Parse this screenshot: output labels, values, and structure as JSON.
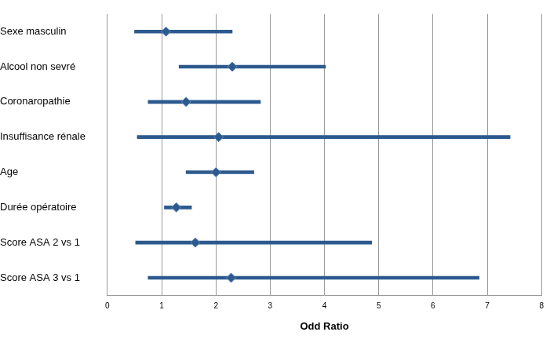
{
  "chart_data": {
    "type": "forest",
    "categories": [
      "Sexe masculin",
      "Alcool non sevré",
      "Coronaropathie",
      "Insuffisance rénale",
      "Age",
      "Durée opératoire",
      "Score ASA 2 vs 1",
      "Score ASA 3 vs 1"
    ],
    "values": [
      1.08,
      2.3,
      1.45,
      2.05,
      2.0,
      1.27,
      1.62,
      2.28
    ],
    "ci_low": [
      0.5,
      1.32,
      0.75,
      0.55,
      1.45,
      1.05,
      0.52,
      0.75
    ],
    "ci_high": [
      2.3,
      4.02,
      2.82,
      7.42,
      2.7,
      1.55,
      4.87,
      6.85
    ],
    "color": "#2d5a8e",
    "marker": "diamond",
    "x_label": "Odd Ratio",
    "xlim": [
      0,
      8
    ],
    "xticks": [
      0,
      1,
      2,
      3,
      4,
      5,
      6,
      7,
      8
    ],
    "grid": true
  }
}
